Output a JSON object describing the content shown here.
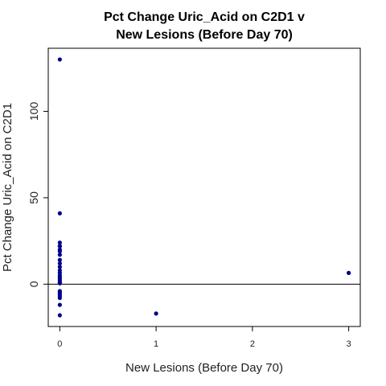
{
  "chart_data": {
    "type": "scatter",
    "title_lines": [
      "Pct Change Uric_Acid on C2D1 v",
      "New Lesions (Before Day 70)"
    ],
    "xlabel": "New Lesions (Before Day 70)",
    "ylabel": "Pct Change Uric_Acid on C2D1",
    "xlim": [
      -0.12,
      3.12
    ],
    "ylim": [
      -24.5,
      136.5
    ],
    "xticks": [
      0,
      1,
      2,
      3
    ],
    "yticks": [
      0,
      50,
      100
    ],
    "reference_line_y": 0,
    "point_color": "#00008b",
    "series": [
      {
        "x": [
          0,
          0,
          0,
          0,
          0,
          0,
          0,
          0,
          0,
          0,
          0,
          0,
          0,
          0,
          0,
          0,
          0,
          0,
          0,
          0,
          0,
          0,
          0,
          0,
          0,
          0,
          1,
          3
        ],
        "y": [
          130,
          41,
          24,
          22,
          20,
          17,
          14,
          12,
          10,
          8,
          6.5,
          5,
          4,
          3,
          2,
          1,
          0.5,
          -4,
          -5,
          -6,
          -7,
          -8,
          -12,
          -18,
          22,
          19,
          -17,
          6.5
        ]
      }
    ]
  }
}
